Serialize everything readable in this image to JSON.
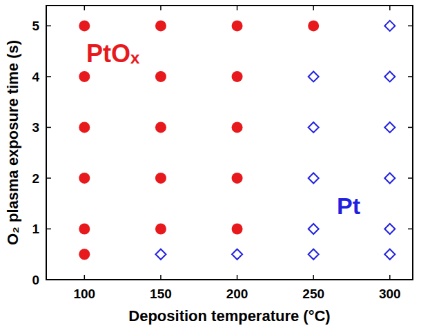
{
  "chart_data": {
    "type": "scatter",
    "x_label": "Deposition temperature (°C)",
    "y_label": "O₂ plasma exposure time (s)",
    "xlim": [
      75,
      315
    ],
    "xticks": [
      100,
      150,
      200,
      250,
      300
    ],
    "ylim": [
      0,
      5.4
    ],
    "yticks": [
      0,
      1,
      2,
      3,
      4,
      5
    ],
    "grid": false,
    "series": [
      {
        "name": "PtOₓ",
        "color": "#e8191c",
        "marker": "circle",
        "x": [
          100,
          100,
          100,
          100,
          100,
          100,
          150,
          150,
          150,
          150,
          150,
          200,
          200,
          200,
          200,
          200,
          250
        ],
        "values": [
          0.5,
          1,
          2,
          3,
          4,
          5,
          1,
          2,
          3,
          4,
          5,
          1,
          2,
          3,
          4,
          5,
          5
        ]
      },
      {
        "name": "Pt",
        "color": "#2020e0",
        "marker": "diamond",
        "x": [
          150,
          200,
          250,
          250,
          250,
          250,
          250,
          300,
          300,
          300,
          300,
          300,
          300
        ],
        "values": [
          0.5,
          0.5,
          0.5,
          1,
          2,
          3,
          4,
          0.5,
          1,
          2,
          3,
          4,
          5
        ]
      }
    ]
  }
}
